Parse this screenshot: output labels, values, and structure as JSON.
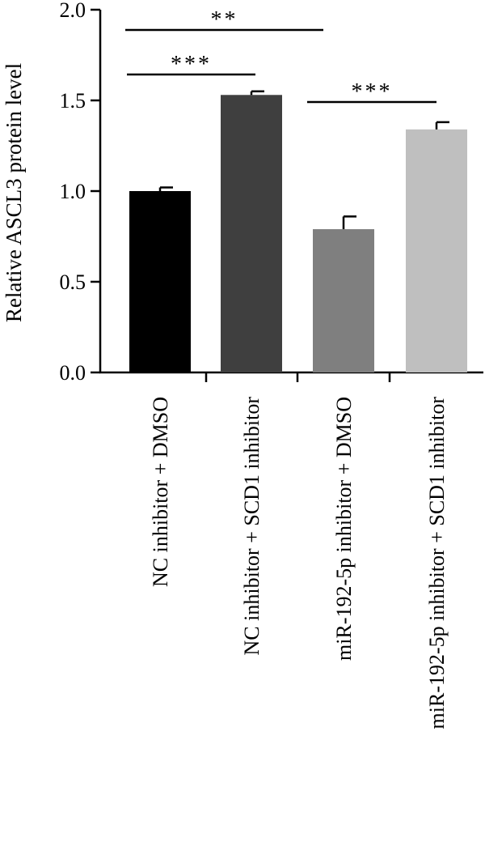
{
  "chart_data": {
    "type": "bar",
    "ylabel": "Relative ASCL3 protein level",
    "ylim": [
      0,
      2.0
    ],
    "yticks": [
      "0.0",
      "0.5",
      "1.0",
      "1.5",
      "2.0"
    ],
    "grid": false,
    "categories": [
      "NC inhibitor + DMSO",
      "NC inhibitor + SCD1 inhibitor",
      "miR-192-5p inhibitor + DMSO",
      "miR-192-5p inhibitor + SCD1 inhibitor"
    ],
    "values": [
      1.0,
      1.53,
      0.79,
      1.34
    ],
    "error": [
      0.02,
      0.02,
      0.07,
      0.04
    ],
    "colors": [
      "#000000",
      "#3f3f3f",
      "#7f7f7f",
      "#bfbfbf"
    ],
    "significance": [
      {
        "from": 0,
        "to": 2,
        "label": "**"
      },
      {
        "from": 0,
        "to": 1,
        "label": "***"
      },
      {
        "from": 2,
        "to": 3,
        "label": "***"
      }
    ]
  }
}
